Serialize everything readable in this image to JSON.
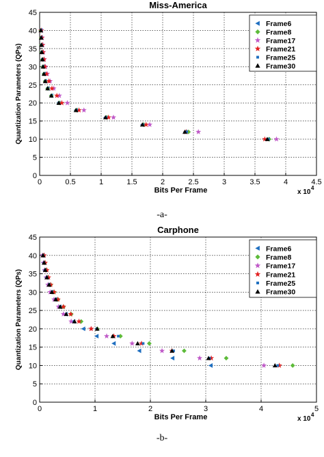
{
  "chart_data": [
    {
      "type": "scatter",
      "title": "Miss-America",
      "xlabel": "Bits Per Frame",
      "ylabel": "Quantization Parameters (QPs)",
      "x_multiplier_label": "x 10",
      "x_multiplier_exp": "4",
      "xlim": [
        0,
        45000
      ],
      "ylim": [
        0,
        45
      ],
      "xticks": [
        "0",
        "0.5",
        "1",
        "1.5",
        "2",
        "2.5",
        "3",
        "3.5",
        "4",
        "4.5"
      ],
      "yticks": [
        "0",
        "5",
        "10",
        "15",
        "20",
        "25",
        "30",
        "35",
        "40",
        "45"
      ],
      "grid": true,
      "legend_position": "top-right",
      "series": [
        {
          "name": "Frame6",
          "marker": "triangle-left",
          "color": "#1f6fc0",
          "points": [
            [
              200,
              40
            ],
            [
              250,
              38
            ],
            [
              300,
              36
            ],
            [
              350,
              34
            ],
            [
              450,
              32
            ],
            [
              550,
              30
            ],
            [
              700,
              28
            ],
            [
              900,
              26
            ],
            [
              1300,
              24
            ],
            [
              1900,
              22
            ],
            [
              3100,
              20
            ],
            [
              5900,
              18
            ],
            [
              10700,
              16
            ],
            [
              16700,
              14
            ],
            [
              23700,
              12
            ],
            [
              37100,
              10
            ]
          ]
        },
        {
          "name": "Frame8",
          "marker": "diamond",
          "color": "#5dbb3a",
          "points": [
            [
              200,
              40
            ],
            [
              250,
              38
            ],
            [
              300,
              36
            ],
            [
              350,
              34
            ],
            [
              450,
              32
            ],
            [
              550,
              30
            ],
            [
              700,
              28
            ],
            [
              900,
              26
            ],
            [
              1300,
              24
            ],
            [
              1900,
              22
            ],
            [
              3200,
              20
            ],
            [
              6000,
              18
            ],
            [
              10900,
              16
            ],
            [
              16900,
              14
            ],
            [
              24200,
              12
            ],
            [
              37300,
              10
            ]
          ]
        },
        {
          "name": "Frame17",
          "marker": "star",
          "color": "#c05ac8",
          "points": [
            [
              300,
              40
            ],
            [
              400,
              38
            ],
            [
              500,
              36
            ],
            [
              600,
              34
            ],
            [
              750,
              32
            ],
            [
              950,
              30
            ],
            [
              1250,
              28
            ],
            [
              1700,
              26
            ],
            [
              2300,
              24
            ],
            [
              3200,
              22
            ],
            [
              4500,
              20
            ],
            [
              7200,
              18
            ],
            [
              12000,
              16
            ],
            [
              17900,
              14
            ],
            [
              25800,
              12
            ],
            [
              38500,
              10
            ]
          ]
        },
        {
          "name": "Frame21",
          "marker": "star",
          "color": "#e22222",
          "points": [
            [
              250,
              40
            ],
            [
              350,
              38
            ],
            [
              450,
              36
            ],
            [
              550,
              34
            ],
            [
              700,
              32
            ],
            [
              850,
              30
            ],
            [
              1100,
              28
            ],
            [
              1500,
              26
            ],
            [
              2000,
              24
            ],
            [
              2800,
              22
            ],
            [
              3600,
              20
            ],
            [
              6400,
              18
            ],
            [
              11200,
              16
            ],
            [
              17300,
              14
            ],
            [
              23800,
              12
            ],
            [
              36600,
              10
            ]
          ]
        },
        {
          "name": "Frame25",
          "marker": "square",
          "color": "#1f6fc0",
          "points": [
            [
              200,
              40
            ],
            [
              250,
              38
            ],
            [
              300,
              36
            ],
            [
              350,
              34
            ],
            [
              450,
              32
            ],
            [
              550,
              30
            ],
            [
              700,
              28
            ],
            [
              900,
              26
            ],
            [
              1300,
              24
            ],
            [
              1900,
              22
            ],
            [
              3100,
              20
            ],
            [
              6000,
              18
            ],
            [
              10800,
              16
            ],
            [
              16800,
              14
            ],
            [
              23900,
              12
            ],
            [
              37200,
              10
            ]
          ]
        },
        {
          "name": "Frame30",
          "marker": "triangle-up",
          "color": "#000000",
          "points": [
            [
              200,
              40
            ],
            [
              250,
              38
            ],
            [
              300,
              36
            ],
            [
              350,
              34
            ],
            [
              450,
              32
            ],
            [
              550,
              30
            ],
            [
              700,
              28
            ],
            [
              900,
              26
            ],
            [
              1300,
              24
            ],
            [
              1900,
              22
            ],
            [
              3100,
              20
            ],
            [
              5900,
              18
            ],
            [
              10700,
              16
            ],
            [
              16700,
              14
            ],
            [
              23600,
              12
            ],
            [
              37000,
              10
            ]
          ]
        }
      ]
    },
    {
      "type": "scatter",
      "title": "Carphone",
      "xlabel": "Bits Per Frame",
      "ylabel": "Quantization Parameters (QPs)",
      "x_multiplier_label": "x 10",
      "x_multiplier_exp": "4",
      "xlim": [
        0,
        50000
      ],
      "ylim": [
        0,
        45
      ],
      "xticks": [
        "0",
        "1",
        "2",
        "3",
        "4",
        "5"
      ],
      "yticks": [
        "0",
        "5",
        "10",
        "15",
        "20",
        "25",
        "30",
        "35",
        "40",
        "45"
      ],
      "grid": true,
      "legend_position": "top-right",
      "series": [
        {
          "name": "Frame6",
          "marker": "triangle-left",
          "color": "#1f6fc0",
          "points": [
            [
              600,
              40
            ],
            [
              700,
              38
            ],
            [
              900,
              36
            ],
            [
              1200,
              34
            ],
            [
              1600,
              32
            ],
            [
              2100,
              30
            ],
            [
              2800,
              28
            ],
            [
              3600,
              26
            ],
            [
              4700,
              24
            ],
            [
              6100,
              22
            ],
            [
              7900,
              20
            ],
            [
              10300,
              18
            ],
            [
              13400,
              16
            ],
            [
              18000,
              14
            ],
            [
              24000,
              12
            ],
            [
              30900,
              10
            ]
          ]
        },
        {
          "name": "Frame8",
          "marker": "diamond",
          "color": "#5dbb3a",
          "points": [
            [
              700,
              40
            ],
            [
              900,
              38
            ],
            [
              1200,
              36
            ],
            [
              1500,
              34
            ],
            [
              2000,
              32
            ],
            [
              2600,
              30
            ],
            [
              3300,
              28
            ],
            [
              4300,
              26
            ],
            [
              5700,
              24
            ],
            [
              7500,
              22
            ],
            [
              10400,
              20
            ],
            [
              14600,
              18
            ],
            [
              19800,
              16
            ],
            [
              26100,
              14
            ],
            [
              33700,
              12
            ],
            [
              45700,
              10
            ]
          ]
        },
        {
          "name": "Frame17",
          "marker": "star",
          "color": "#c05ac8",
          "points": [
            [
              500,
              40
            ],
            [
              700,
              38
            ],
            [
              900,
              36
            ],
            [
              1200,
              34
            ],
            [
              1500,
              32
            ],
            [
              1900,
              30
            ],
            [
              2600,
              28
            ],
            [
              3400,
              26
            ],
            [
              4300,
              24
            ],
            [
              5700,
              22
            ],
            [
              9300,
              20
            ],
            [
              12100,
              18
            ],
            [
              16700,
              16
            ],
            [
              22100,
              14
            ],
            [
              28900,
              12
            ],
            [
              40500,
              10
            ]
          ]
        },
        {
          "name": "Frame21",
          "marker": "star",
          "color": "#e22222",
          "points": [
            [
              800,
              40
            ],
            [
              1000,
              38
            ],
            [
              1300,
              36
            ],
            [
              1600,
              34
            ],
            [
              2000,
              32
            ],
            [
              2600,
              30
            ],
            [
              3300,
              28
            ],
            [
              4300,
              26
            ],
            [
              5600,
              24
            ],
            [
              7100,
              22
            ],
            [
              9300,
              20
            ],
            [
              13400,
              18
            ],
            [
              18400,
              16
            ],
            [
              23900,
              14
            ],
            [
              31000,
              12
            ],
            [
              43300,
              10
            ]
          ]
        },
        {
          "name": "Frame25",
          "marker": "square",
          "color": "#1f6fc0",
          "points": [
            [
              600,
              40
            ],
            [
              800,
              38
            ],
            [
              1000,
              36
            ],
            [
              1300,
              34
            ],
            [
              1700,
              32
            ],
            [
              2200,
              30
            ],
            [
              2900,
              28
            ],
            [
              3700,
              26
            ],
            [
              4800,
              24
            ],
            [
              6200,
              22
            ],
            [
              10300,
              20
            ],
            [
              14200,
              18
            ],
            [
              18700,
              16
            ],
            [
              24200,
              14
            ],
            [
              30700,
              12
            ],
            [
              43000,
              10
            ]
          ]
        },
        {
          "name": "Frame30",
          "marker": "triangle-up",
          "color": "#000000",
          "points": [
            [
              600,
              40
            ],
            [
              800,
              38
            ],
            [
              1000,
              36
            ],
            [
              1300,
              34
            ],
            [
              1700,
              32
            ],
            [
              2200,
              30
            ],
            [
              2900,
              28
            ],
            [
              3700,
              26
            ],
            [
              4800,
              24
            ],
            [
              6300,
              22
            ],
            [
              10400,
              20
            ],
            [
              13200,
              18
            ],
            [
              17700,
              16
            ],
            [
              23900,
              14
            ],
            [
              30500,
              12
            ],
            [
              42500,
              10
            ]
          ]
        }
      ]
    }
  ],
  "captions": [
    "-a-",
    "-b-"
  ]
}
